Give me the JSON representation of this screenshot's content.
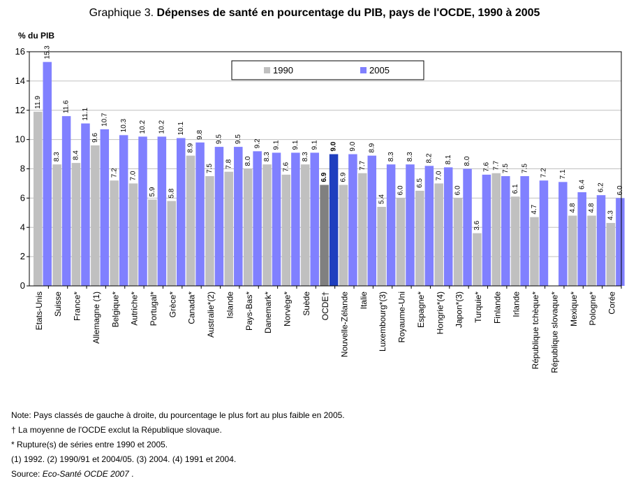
{
  "title": {
    "prefix": "Graphique 3.",
    "main": "Dépenses de santé en pourcentage du PIB, pays de l'OCDE, 1990 à 2005"
  },
  "colors": {
    "series_1990": "#c0c0c0",
    "series_2005": "#8080ff",
    "highlight_1990": "#808080",
    "highlight_2005": "#1f3fbf",
    "plot_background": "#ffffff",
    "gridline": "#c0c0c0"
  },
  "notes": [
    "Note: Pays classés de gauche à droite, du pourcentage le plus fort au plus faible en 2005.",
    "† La moyenne de l'OCDE exclut la République slovaque.",
    "* Rupture(s) de séries entre 1990 et 2005.",
    "(1) 1992.   (2) 1990/91 et 2004/05.   (3) 2004.   (4) 1991 et 2004."
  ],
  "source": {
    "label": "Source:",
    "title": "Eco-Santé OCDE 2007",
    "end": "."
  },
  "chart_data": {
    "type": "bar",
    "title": "Dépenses de santé en pourcentage du PIB, pays de l'OCDE, 1990 à 2005",
    "ylabel": "% du PIB",
    "xlabel": "",
    "ylim": [
      0,
      16
    ],
    "yticks": [
      0,
      2,
      4,
      6,
      8,
      10,
      12,
      14,
      16
    ],
    "grid": true,
    "legend_position": "top-center",
    "highlight_category": "OCDE†",
    "categories": [
      "Etats-Unis",
      "Suisse",
      "France*",
      "Allemagne (1)",
      "Belgique*",
      "Autriche*",
      "Portugal*",
      "Grèce*",
      "Canada*",
      "Australie*(2)",
      "Islande",
      "Pays-Bas*",
      "Danemark*",
      "Norvège*",
      "Suède",
      "OCDE†",
      "Nouvelle-Zélande",
      "Italie",
      "Luxembourg*(3)",
      "Royaume-Uni",
      "Espagne*",
      "Hongrie*(4)",
      "Japon*(3)",
      "Turquie*",
      "Finlande",
      "Irlande",
      "République tchèque*",
      "République slovaque*",
      "Mexique*",
      "Pologne*",
      "Corée"
    ],
    "series": [
      {
        "name": "1990",
        "values": [
          11.9,
          8.3,
          8.4,
          9.6,
          7.2,
          7.0,
          5.9,
          5.8,
          8.9,
          7.5,
          7.8,
          8.0,
          8.3,
          7.6,
          8.3,
          6.9,
          6.9,
          7.7,
          5.4,
          6.0,
          6.5,
          7.0,
          6.0,
          3.6,
          7.7,
          6.1,
          4.7,
          null,
          4.8,
          4.8,
          4.3
        ],
        "labels": [
          "11.9",
          "8.3",
          "8.4",
          "9.6",
          "7.2",
          "7.0",
          "5.9",
          "5.8",
          "8.9",
          "7.5",
          "7.8",
          "8.0",
          "8.3",
          "7.6",
          "8.3",
          "6.9",
          "6.9",
          "7.7",
          "5.4",
          "6.0",
          "6.5",
          "7.0",
          "6.0",
          "3.6",
          "7.7",
          "6.1",
          "4.7",
          "",
          "4.8",
          "4.8",
          "4.3"
        ]
      },
      {
        "name": "2005",
        "values": [
          15.3,
          11.6,
          11.1,
          10.7,
          10.3,
          10.2,
          10.2,
          10.1,
          9.8,
          9.5,
          9.5,
          9.2,
          9.1,
          9.1,
          9.1,
          9.0,
          9.0,
          8.9,
          8.3,
          8.3,
          8.2,
          8.1,
          8.0,
          7.6,
          7.5,
          7.5,
          7.2,
          7.1,
          6.4,
          6.2,
          6.0
        ],
        "labels": [
          "15.3",
          "11.6",
          "11.1",
          "10.7",
          "10.3",
          "10.2",
          "10.2",
          "10.1",
          "9.8",
          "9.5",
          "9.5",
          "9.2",
          "9.1",
          "9.1",
          "9.1",
          "9.0",
          "9.0",
          "8.9",
          "8.3",
          "8.3",
          "8.2",
          "8.1",
          "8.0",
          "7.6",
          "7.5",
          "7.5",
          "7.2",
          "7.1",
          "6.4",
          "6.2",
          "6.0"
        ]
      }
    ]
  }
}
